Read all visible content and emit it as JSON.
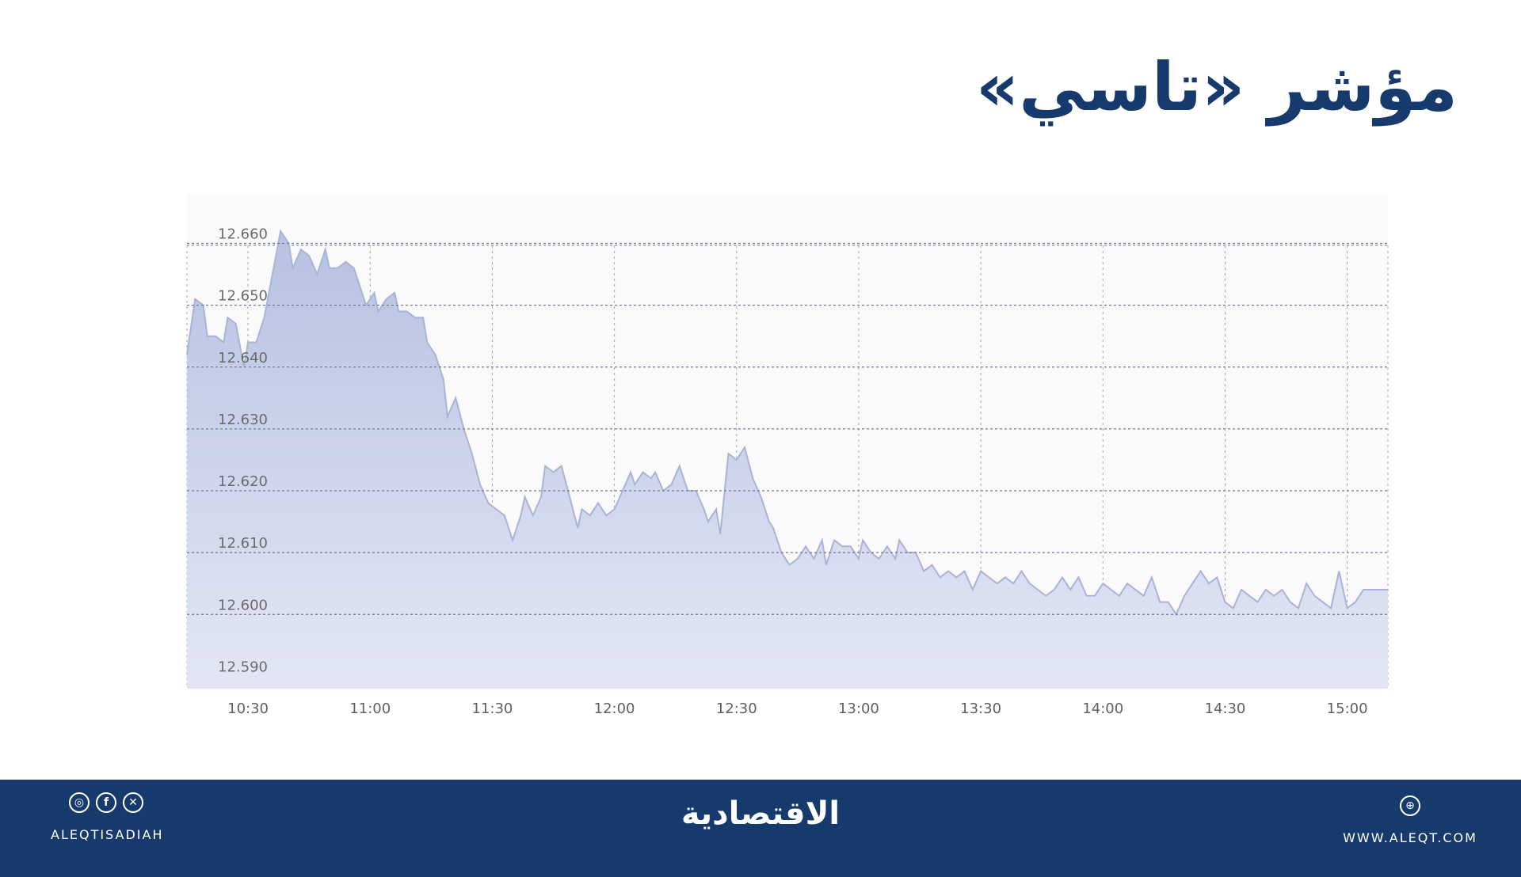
{
  "header": {
    "title": "مؤشر «تاسي»"
  },
  "chart_data": {
    "type": "area",
    "title": "",
    "xlabel": "",
    "ylabel": "",
    "x_range": [
      "10:15",
      "15:10"
    ],
    "ylim": [
      12.588,
      12.668
    ],
    "x_ticks": [
      "10:30",
      "11:00",
      "11:30",
      "12:00",
      "12:30",
      "13:00",
      "13:30",
      "14:00",
      "14:30",
      "15:00"
    ],
    "y_ticks": [
      "12.660",
      "12.650",
      "12.640",
      "12.630",
      "12.620",
      "12.610",
      "12.600",
      "12.590"
    ],
    "grid": true,
    "legend": "none",
    "fill_color": "#c3cce6",
    "line_color": "#a8b3d9",
    "points": [
      [
        "10:15",
        12.642
      ],
      [
        "10:17",
        12.651
      ],
      [
        "10:19",
        12.65
      ],
      [
        "10:20",
        12.645
      ],
      [
        "10:22",
        12.645
      ],
      [
        "10:24",
        12.644
      ],
      [
        "10:25",
        12.648
      ],
      [
        "10:27",
        12.647
      ],
      [
        "10:29",
        12.64
      ],
      [
        "10:30",
        12.644
      ],
      [
        "10:32",
        12.644
      ],
      [
        "10:34",
        12.648
      ],
      [
        "10:36",
        12.655
      ],
      [
        "10:38",
        12.662
      ],
      [
        "10:40",
        12.66
      ],
      [
        "10:41",
        12.656
      ],
      [
        "10:43",
        12.659
      ],
      [
        "10:45",
        12.658
      ],
      [
        "10:47",
        12.655
      ],
      [
        "10:49",
        12.659
      ],
      [
        "10:50",
        12.656
      ],
      [
        "10:52",
        12.656
      ],
      [
        "10:54",
        12.657
      ],
      [
        "10:56",
        12.656
      ],
      [
        "10:58",
        12.652
      ],
      [
        "10:59",
        12.65
      ],
      [
        "11:01",
        12.652
      ],
      [
        "11:02",
        12.649
      ],
      [
        "11:04",
        12.651
      ],
      [
        "11:06",
        12.652
      ],
      [
        "11:07",
        12.649
      ],
      [
        "11:09",
        12.649
      ],
      [
        "11:11",
        12.648
      ],
      [
        "11:13",
        12.648
      ],
      [
        "11:14",
        12.644
      ],
      [
        "11:16",
        12.642
      ],
      [
        "11:18",
        12.638
      ],
      [
        "11:19",
        12.632
      ],
      [
        "11:21",
        12.635
      ],
      [
        "11:23",
        12.63
      ],
      [
        "11:25",
        12.626
      ],
      [
        "11:27",
        12.621
      ],
      [
        "11:29",
        12.618
      ],
      [
        "11:31",
        12.617
      ],
      [
        "11:33",
        12.616
      ],
      [
        "11:35",
        12.612
      ],
      [
        "11:37",
        12.616
      ],
      [
        "11:38",
        12.619
      ],
      [
        "11:40",
        12.616
      ],
      [
        "11:42",
        12.619
      ],
      [
        "11:43",
        12.624
      ],
      [
        "11:45",
        12.623
      ],
      [
        "11:47",
        12.624
      ],
      [
        "11:49",
        12.619
      ],
      [
        "11:51",
        12.614
      ],
      [
        "11:52",
        12.617
      ],
      [
        "11:54",
        12.616
      ],
      [
        "11:56",
        12.618
      ],
      [
        "11:58",
        12.616
      ],
      [
        "12:00",
        12.617
      ],
      [
        "12:02",
        12.62
      ],
      [
        "12:04",
        12.623
      ],
      [
        "12:05",
        12.621
      ],
      [
        "12:07",
        12.623
      ],
      [
        "12:09",
        12.622
      ],
      [
        "12:10",
        12.623
      ],
      [
        "12:12",
        12.62
      ],
      [
        "12:14",
        12.621
      ],
      [
        "12:16",
        12.624
      ],
      [
        "12:18",
        12.62
      ],
      [
        "12:20",
        12.62
      ],
      [
        "12:22",
        12.617
      ],
      [
        "12:23",
        12.615
      ],
      [
        "12:25",
        12.617
      ],
      [
        "12:26",
        12.613
      ],
      [
        "12:28",
        12.626
      ],
      [
        "12:30",
        12.625
      ],
      [
        "12:32",
        12.627
      ],
      [
        "12:34",
        12.622
      ],
      [
        "12:36",
        12.619
      ],
      [
        "12:38",
        12.615
      ],
      [
        "12:39",
        12.614
      ],
      [
        "12:41",
        12.61
      ],
      [
        "12:43",
        12.608
      ],
      [
        "12:45",
        12.609
      ],
      [
        "12:47",
        12.611
      ],
      [
        "12:49",
        12.609
      ],
      [
        "12:51",
        12.612
      ],
      [
        "12:52",
        12.608
      ],
      [
        "12:54",
        12.612
      ],
      [
        "12:56",
        12.611
      ],
      [
        "12:58",
        12.611
      ],
      [
        "13:00",
        12.609
      ],
      [
        "13:01",
        12.612
      ],
      [
        "13:03",
        12.61
      ],
      [
        "13:05",
        12.609
      ],
      [
        "13:07",
        12.611
      ],
      [
        "13:09",
        12.609
      ],
      [
        "13:10",
        12.612
      ],
      [
        "13:12",
        12.61
      ],
      [
        "13:14",
        12.61
      ],
      [
        "13:16",
        12.607
      ],
      [
        "13:18",
        12.608
      ],
      [
        "13:20",
        12.606
      ],
      [
        "13:22",
        12.607
      ],
      [
        "13:24",
        12.606
      ],
      [
        "13:26",
        12.607
      ],
      [
        "13:28",
        12.604
      ],
      [
        "13:30",
        12.607
      ],
      [
        "13:32",
        12.606
      ],
      [
        "13:34",
        12.605
      ],
      [
        "13:36",
        12.606
      ],
      [
        "13:38",
        12.605
      ],
      [
        "13:40",
        12.607
      ],
      [
        "13:42",
        12.605
      ],
      [
        "13:44",
        12.604
      ],
      [
        "13:46",
        12.603
      ],
      [
        "13:48",
        12.604
      ],
      [
        "13:50",
        12.606
      ],
      [
        "13:52",
        12.604
      ],
      [
        "13:54",
        12.606
      ],
      [
        "13:56",
        12.603
      ],
      [
        "13:58",
        12.603
      ],
      [
        "14:00",
        12.605
      ],
      [
        "14:02",
        12.604
      ],
      [
        "14:04",
        12.603
      ],
      [
        "14:06",
        12.605
      ],
      [
        "14:08",
        12.604
      ],
      [
        "14:10",
        12.603
      ],
      [
        "14:12",
        12.606
      ],
      [
        "14:14",
        12.602
      ],
      [
        "14:16",
        12.602
      ],
      [
        "14:18",
        12.6
      ],
      [
        "14:20",
        12.603
      ],
      [
        "14:22",
        12.605
      ],
      [
        "14:24",
        12.607
      ],
      [
        "14:26",
        12.605
      ],
      [
        "14:28",
        12.606
      ],
      [
        "14:30",
        12.602
      ],
      [
        "14:32",
        12.601
      ],
      [
        "14:34",
        12.604
      ],
      [
        "14:36",
        12.603
      ],
      [
        "14:38",
        12.602
      ],
      [
        "14:40",
        12.604
      ],
      [
        "14:42",
        12.603
      ],
      [
        "14:44",
        12.604
      ],
      [
        "14:46",
        12.602
      ],
      [
        "14:48",
        12.601
      ],
      [
        "14:50",
        12.605
      ],
      [
        "14:52",
        12.603
      ],
      [
        "14:54",
        12.602
      ],
      [
        "14:56",
        12.601
      ],
      [
        "14:58",
        12.607
      ],
      [
        "15:00",
        12.601
      ],
      [
        "15:02",
        12.602
      ],
      [
        "15:04",
        12.604
      ],
      [
        "15:06",
        12.604
      ],
      [
        "15:08",
        12.604
      ],
      [
        "15:10",
        12.604
      ]
    ]
  },
  "footer": {
    "social_icons": [
      "instagram-icon",
      "facebook-icon",
      "x-icon"
    ],
    "handle": "ALEQTISADIAH",
    "brand": "الاقتصادية",
    "web_icon": "globe-icon",
    "website": "WWW.ALEQT.COM"
  }
}
